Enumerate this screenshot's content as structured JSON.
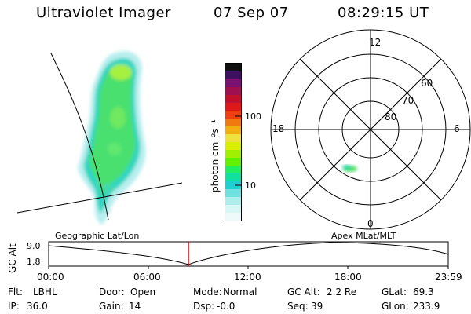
{
  "header": {
    "instrument": "Ultraviolet Imager",
    "date": "07 Sep 07",
    "time": "08:29:15 UT"
  },
  "colorbar": {
    "unit_label": "photon cm⁻²s⁻¹",
    "ticks": [
      "100",
      "10"
    ],
    "colors": [
      "#101010",
      "#401060",
      "#7a1070",
      "#9e1050",
      "#c01030",
      "#e01818",
      "#f04010",
      "#f07a10",
      "#f0b010",
      "#f0e040",
      "#d8f000",
      "#a0f000",
      "#60f000",
      "#20f060",
      "#10e0a0",
      "#20d0d0",
      "#70e0e0",
      "#b0eeee",
      "#d8f6f6",
      "#eef9f9"
    ]
  },
  "geo_panel": {
    "label": "Geographic Lat/Lon"
  },
  "polar_panel": {
    "label": "Apex MLat/MLT",
    "mlt_labels": {
      "top": "12",
      "left": "18",
      "right": "6",
      "bottom": "0"
    },
    "lat_labels": [
      "60",
      "70",
      "80"
    ]
  },
  "orbit_plot": {
    "ylabel": "GC Alt",
    "y_ticks": [
      "9.0",
      "1.8"
    ],
    "x_ticks": [
      "00:00",
      "06:00",
      "12:00",
      "18:00",
      "23:59"
    ],
    "marker_color": "#dd0000"
  },
  "status": {
    "row1": [
      {
        "key": "Flt:",
        "value": "LBHL"
      },
      {
        "key": "Door:",
        "value": "Open"
      },
      {
        "key": "Mode:",
        "value": "Normal"
      },
      {
        "key": "GC Alt:",
        "value": "2.2 Re"
      },
      {
        "key": "GLat:",
        "value": "69.3"
      }
    ],
    "row2": [
      {
        "key": "IP:",
        "value": "36.0"
      },
      {
        "key": "Gain:",
        "value": "14"
      },
      {
        "key": "Dsp:",
        "value": "-0.0"
      },
      {
        "key": "Seq:",
        "value": "39"
      },
      {
        "key": "GLon:",
        "value": "233.9"
      }
    ]
  }
}
